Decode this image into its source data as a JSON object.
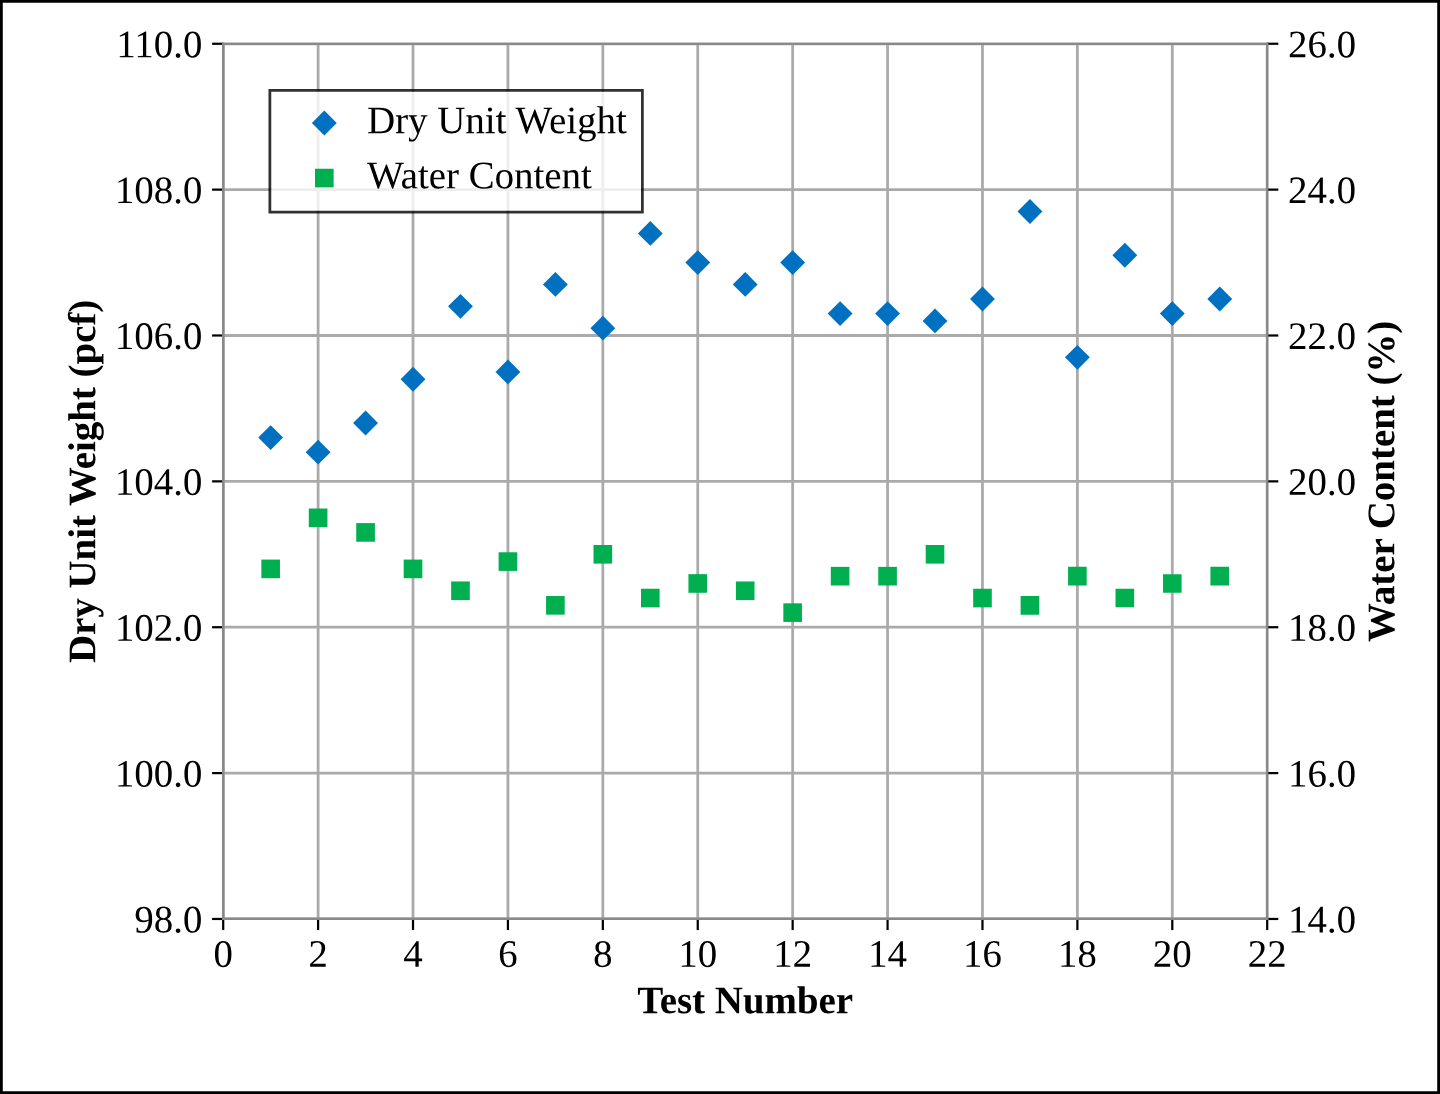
{
  "chart_data": {
    "type": "scatter",
    "xlabel": "Test Number",
    "ylabel": "Dry Unit Weight (pcf)",
    "y2label": "Water Content (%)",
    "x": [
      1,
      2,
      3,
      4,
      5,
      6,
      7,
      8,
      9,
      10,
      11,
      12,
      13,
      14,
      15,
      16,
      17,
      18,
      19,
      20,
      21
    ],
    "series": [
      {
        "name": "Dry Unit Weight",
        "color": "#0070c0",
        "marker": "diamond",
        "values": [
          104.6,
          104.4,
          104.8,
          105.4,
          106.4,
          105.5,
          106.7,
          106.1,
          107.4,
          107.0,
          106.7,
          107.0,
          106.3,
          106.3,
          106.2,
          106.5,
          107.7,
          105.7,
          107.1,
          106.3,
          106.5
        ]
      },
      {
        "name": "Water Content",
        "color": "#00b050",
        "marker": "square",
        "axis": "y2",
        "values": [
          18.8,
          19.5,
          19.3,
          18.8,
          18.5,
          18.9,
          18.3,
          19.0,
          18.4,
          18.6,
          18.5,
          18.2,
          18.7,
          18.7,
          19.0,
          18.4,
          18.3,
          18.7,
          18.4,
          18.6,
          18.7
        ]
      }
    ],
    "xlim": [
      0,
      22
    ],
    "xticks": [
      0,
      2,
      4,
      6,
      8,
      10,
      12,
      14,
      16,
      18,
      20,
      22
    ],
    "ylim": [
      98,
      110
    ],
    "yticks": [
      {
        "value": 98,
        "label": "98.0"
      },
      {
        "value": 100,
        "label": "100.0"
      },
      {
        "value": 102,
        "label": "102.0"
      },
      {
        "value": 104,
        "label": "104.0"
      },
      {
        "value": 106,
        "label": "106.0"
      },
      {
        "value": 108,
        "label": "108.0"
      },
      {
        "value": 110,
        "label": "110.0"
      }
    ],
    "y2lim": [
      14,
      26
    ],
    "y2ticks": [
      {
        "value": 14,
        "label": "14.0"
      },
      {
        "value": 16,
        "label": "16.0"
      },
      {
        "value": 18,
        "label": "18.0"
      },
      {
        "value": 20,
        "label": "20.0"
      },
      {
        "value": 22,
        "label": "22.0"
      },
      {
        "value": 24,
        "label": "24.0"
      },
      {
        "value": 26,
        "label": "26.0"
      }
    ],
    "grid": true,
    "legend": "top left"
  }
}
